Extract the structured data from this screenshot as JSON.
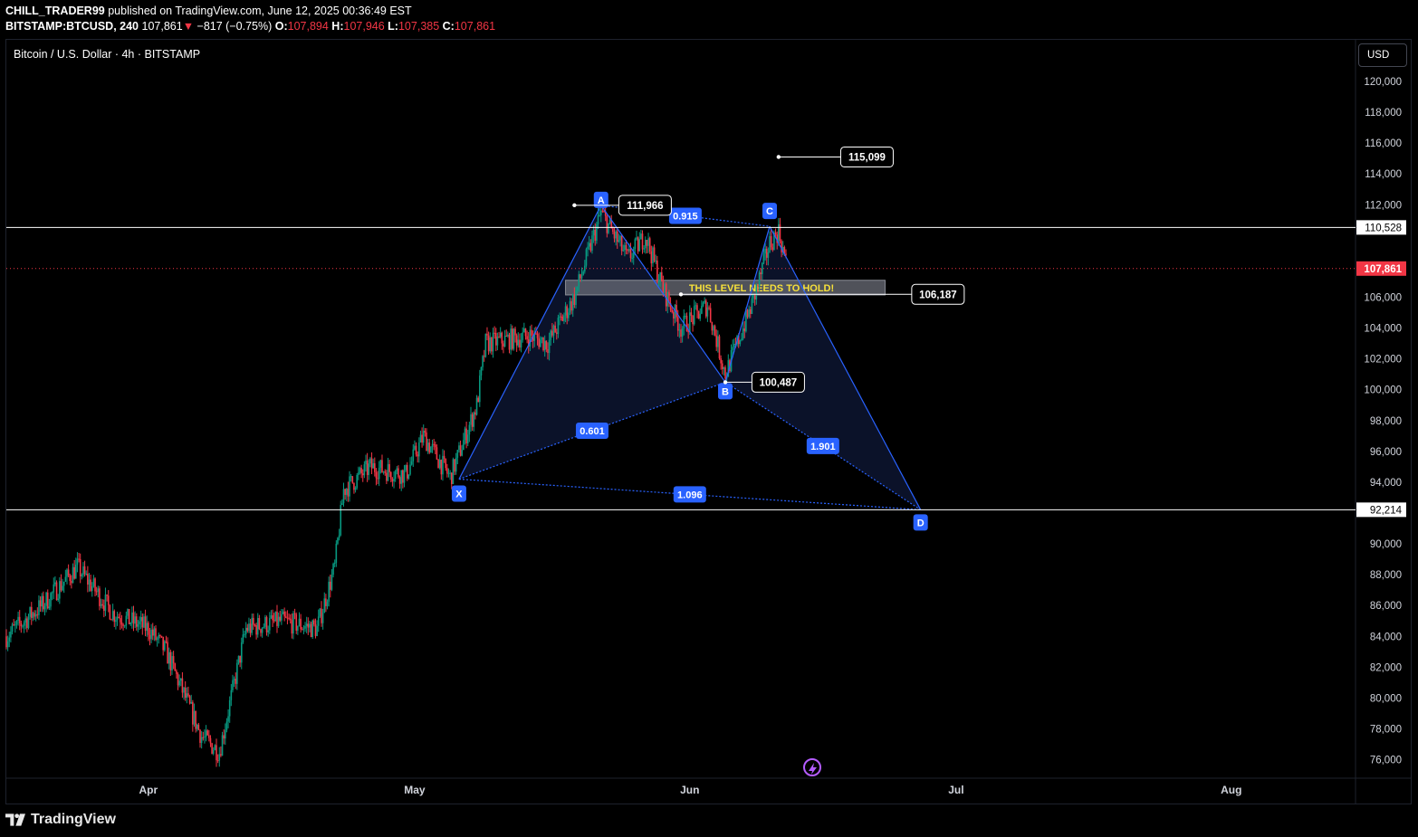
{
  "header": {
    "author": "CHILL_TRADER99",
    "published": "published on TradingView.com, June 12, 2025 00:36:49 EST",
    "ticker": "BITSTAMP:BTCUSD, 240",
    "last": "107,861",
    "change": "−817 (−0.75%)",
    "o_label": "O:",
    "o_val": "107,894",
    "h_label": "H:",
    "h_val": "107,946",
    "l_label": "L:",
    "l_val": "107,385",
    "c_label": "C:",
    "c_val": "107,861"
  },
  "symbol_title": "Bitcoin / U.S. Dollar · 4h · BITSTAMP",
  "currency_button": "USD",
  "footer": {
    "brand": "TradingView"
  },
  "colors": {
    "background": "#000000",
    "up": "#089981",
    "down": "#f23645",
    "pattern": "#2962ff",
    "pattern_fill": "#0d1530",
    "zone_text": "#f7e13b"
  },
  "chart_data": {
    "type": "candlestick",
    "interval": "4h",
    "ylim": [
      74800,
      122700
    ],
    "y_ticks": [
      "76,000",
      "78,000",
      "80,000",
      "82,000",
      "84,000",
      "86,000",
      "88,000",
      "90,000",
      "94,000",
      "96,000",
      "98,000",
      "100,000",
      "102,000",
      "104,000",
      "106,000",
      "112,000",
      "114,000",
      "116,000",
      "118,000",
      "120,000"
    ],
    "y_tick_values": [
      76000,
      78000,
      80000,
      82000,
      84000,
      86000,
      88000,
      90000,
      94000,
      96000,
      98000,
      100000,
      102000,
      104000,
      106000,
      112000,
      114000,
      116000,
      118000,
      120000
    ],
    "x_ticks": [
      "Apr",
      "May",
      "Jun",
      "Jul",
      "Aug"
    ],
    "x_tick_dates": [
      "2025-04-01",
      "2025-05-01",
      "2025-06-01",
      "2025-07-01",
      "2025-08-01"
    ],
    "date_range": [
      "2025-03-16",
      "2025-08-15"
    ],
    "price_path": [
      [
        "2025-03-16",
        84000
      ],
      [
        "2025-03-20",
        86000
      ],
      [
        "2025-03-24",
        88500
      ],
      [
        "2025-03-28",
        85500
      ],
      [
        "2025-04-01",
        84500
      ],
      [
        "2025-04-03",
        83000
      ],
      [
        "2025-04-07",
        77500
      ],
      [
        "2025-04-09",
        76500
      ],
      [
        "2025-04-12",
        84500
      ],
      [
        "2025-04-16",
        85000
      ],
      [
        "2025-04-20",
        84500
      ],
      [
        "2025-04-22",
        88500
      ],
      [
        "2025-04-23",
        93500
      ],
      [
        "2025-04-26",
        95000
      ],
      [
        "2025-04-30",
        94500
      ],
      [
        "2025-05-02",
        97000
      ],
      [
        "2025-05-05",
        94300
      ],
      [
        "2025-05-08",
        99000
      ],
      [
        "2025-05-09",
        103000
      ],
      [
        "2025-05-14",
        103500
      ],
      [
        "2025-05-16",
        103000
      ],
      [
        "2025-05-19",
        106000
      ],
      [
        "2025-05-22",
        111500
      ],
      [
        "2025-05-25",
        108500
      ],
      [
        "2025-05-27",
        110000
      ],
      [
        "2025-05-29",
        106500
      ],
      [
        "2025-05-31",
        104000
      ],
      [
        "2025-06-03",
        105500
      ],
      [
        "2025-06-05",
        101000
      ],
      [
        "2025-06-08",
        105500
      ],
      [
        "2025-06-10",
        109500
      ],
      [
        "2025-06-11",
        110300
      ],
      [
        "2025-06-12",
        107861
      ]
    ],
    "horizontal_lines": [
      {
        "price": 110528,
        "label": "110,528"
      },
      {
        "price": 92214,
        "label": "92,214"
      }
    ],
    "last_price": {
      "price": 107861,
      "label": "107,861"
    },
    "pattern": {
      "points": [
        {
          "label": "X",
          "date": "2025-05-06",
          "price": 94200
        },
        {
          "label": "A",
          "date": "2025-05-22",
          "price": 111966
        },
        {
          "label": "B",
          "date": "2025-06-05",
          "price": 100487
        },
        {
          "label": "C",
          "date": "2025-06-10",
          "price": 110600
        },
        {
          "label": "D",
          "date": "2025-06-27",
          "price": 92214
        }
      ],
      "ratios": [
        "0.601",
        "0.915",
        "1.901",
        "1.096"
      ]
    },
    "price_callouts": [
      "111,966",
      "100,487",
      "115,099",
      "106,187"
    ],
    "callout_prices": [
      111966,
      100487,
      115099,
      106187
    ],
    "zone": {
      "label": "THIS LEVEL NEEDS TO HOLD!",
      "top": 107100,
      "bottom": 106150,
      "from": "2025-05-18",
      "to": "2025-06-23"
    }
  }
}
